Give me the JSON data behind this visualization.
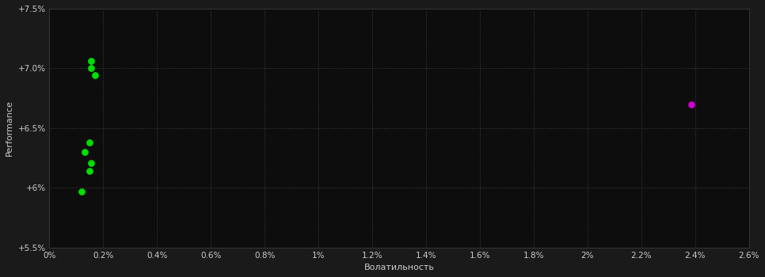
{
  "background_color": "#1a1a1a",
  "plot_bg_color": "#0d0d0d",
  "grid_color": "#404040",
  "grid_style": ":",
  "xlabel": "Волатильность",
  "ylabel": "Performance",
  "xlim": [
    0.0,
    0.026
  ],
  "ylim": [
    0.055,
    0.075
  ],
  "xticks": [
    0.0,
    0.002,
    0.004,
    0.006,
    0.008,
    0.01,
    0.012,
    0.014,
    0.016,
    0.018,
    0.02,
    0.022,
    0.024,
    0.026
  ],
  "yticks": [
    0.055,
    0.06,
    0.065,
    0.07,
    0.075
  ],
  "green_points": [
    [
      0.00155,
      0.0706
    ],
    [
      0.00155,
      0.07
    ],
    [
      0.0017,
      0.0694
    ],
    [
      0.0015,
      0.0638
    ],
    [
      0.0013,
      0.063
    ],
    [
      0.00155,
      0.0621
    ],
    [
      0.00148,
      0.0614
    ],
    [
      0.00118,
      0.0597
    ]
  ],
  "magenta_points": [
    [
      0.02385,
      0.067
    ]
  ],
  "point_size": 28,
  "green_color": "#00dd00",
  "magenta_color": "#cc00cc",
  "text_color": "#cccccc",
  "label_fontsize": 8,
  "tick_fontsize": 7.5
}
